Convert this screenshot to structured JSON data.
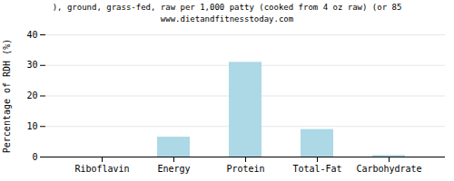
{
  "chart_data": {
    "type": "bar",
    "title": "), ground, grass-fed, raw per 1,000 patty (cooked from 4 oz raw) (or 85",
    "subtitle": "www.dietandfitnesstoday.com",
    "categories": [
      "Riboflavin",
      "Energy",
      "Protein",
      "Total-Fat",
      "Carbohydrate"
    ],
    "values": [
      0.0,
      6.5,
      31.0,
      9.0,
      0.5
    ],
    "color": "#add8e6",
    "ylabel": "Percentage of RDH (%)",
    "ylim": [
      0,
      40
    ],
    "yticks": [
      0,
      10,
      20,
      30,
      40
    ],
    "grid": true
  }
}
